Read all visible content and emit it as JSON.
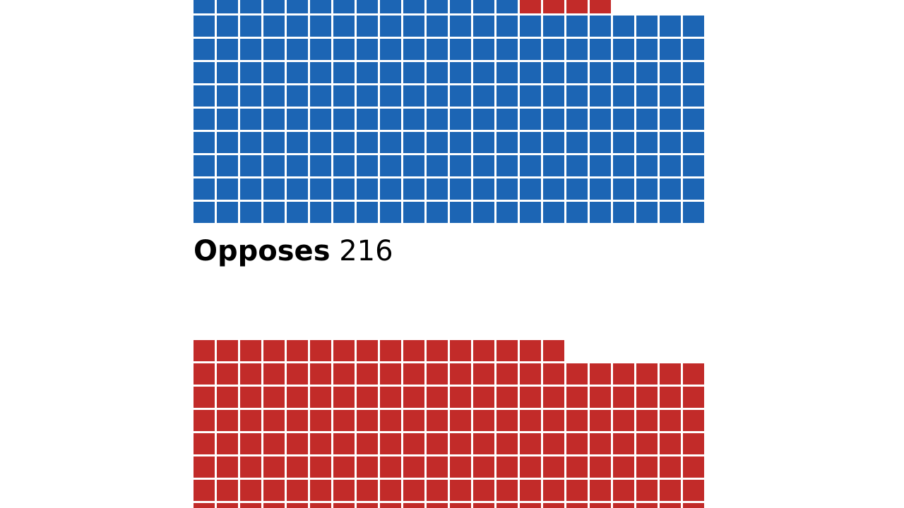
{
  "chart_data": {
    "type": "waffle",
    "columns": 22,
    "groups": [
      {
        "label": "Opposes",
        "total": 216,
        "segments": [
          {
            "color": "#1c65b4",
            "count": 212
          },
          {
            "color": "#c22b29",
            "count": 4
          }
        ]
      },
      {
        "segments": [
          {
            "color": "#c22b29",
            "count": 170
          }
        ]
      }
    ]
  }
}
